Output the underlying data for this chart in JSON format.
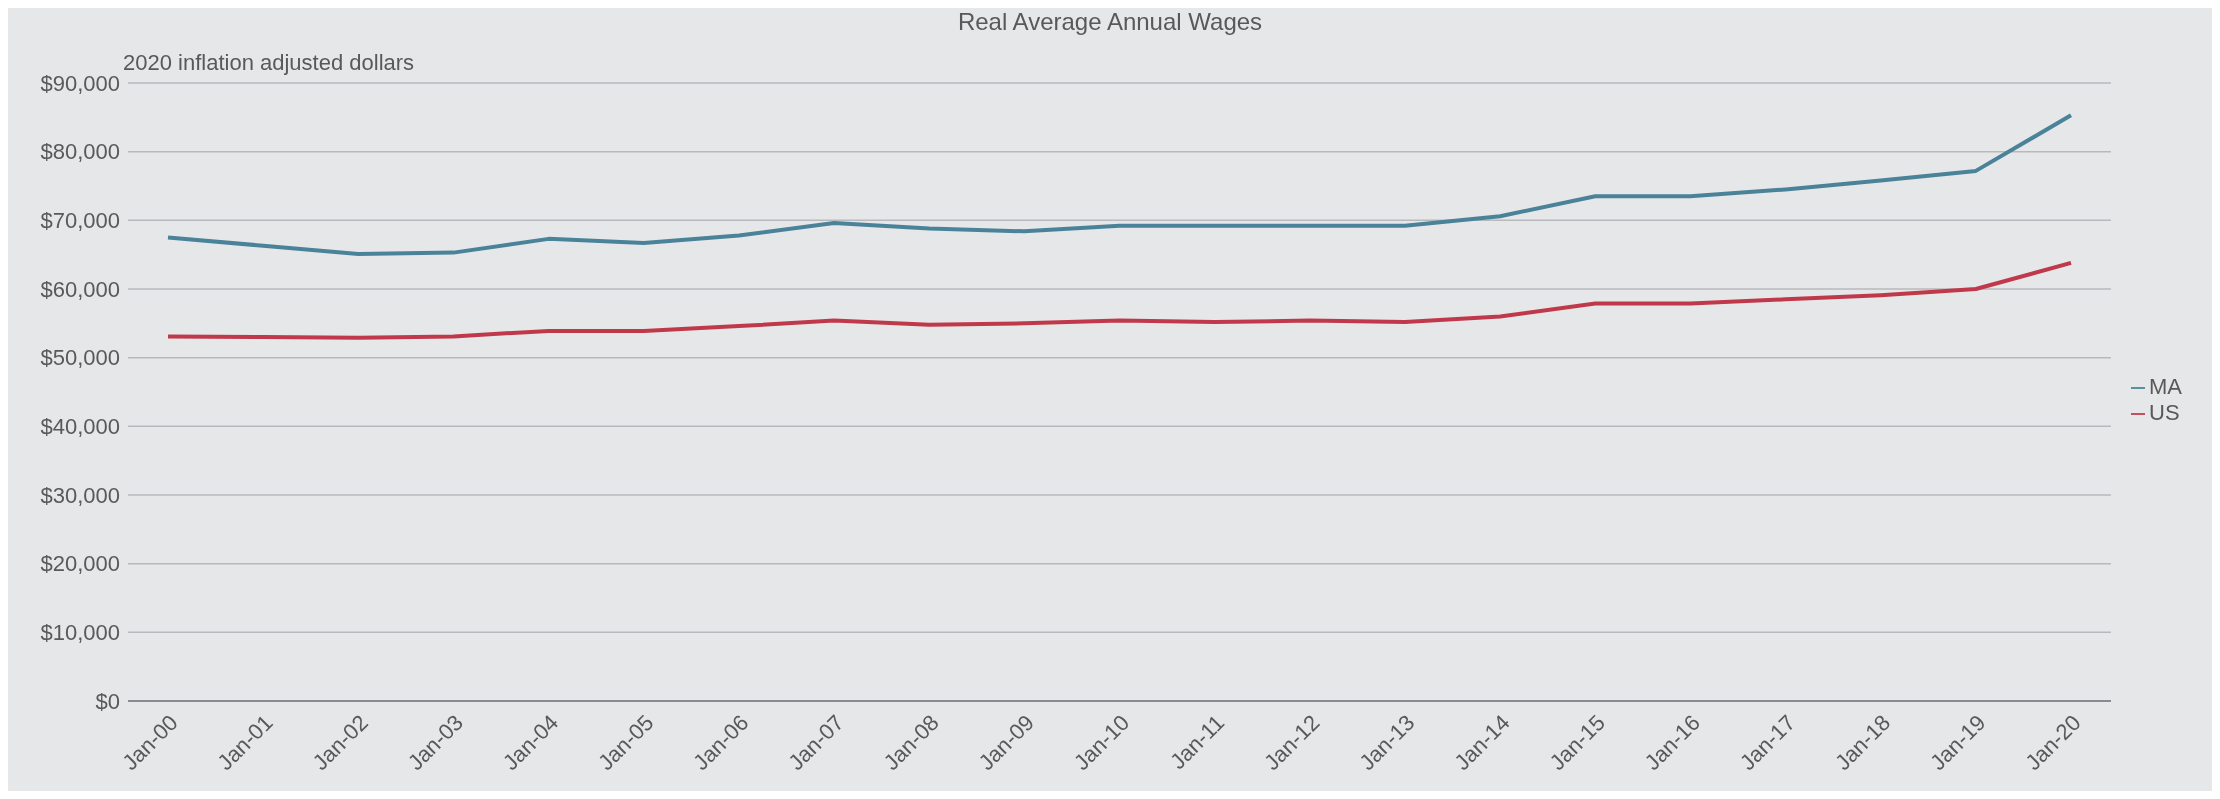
{
  "chart_data": {
    "type": "line",
    "title": "Real Average Annual Wages",
    "subtitle": "2020 inflation adjusted dollars",
    "categories": [
      "Jan-00",
      "Jan-01",
      "Jan-02",
      "Jan-03",
      "Jan-04",
      "Jan-05",
      "Jan-06",
      "Jan-07",
      "Jan-08",
      "Jan-09",
      "Jan-10",
      "Jan-11",
      "Jan-12",
      "Jan-13",
      "Jan-14",
      "Jan-15",
      "Jan-16",
      "Jan-17",
      "Jan-18",
      "Jan-19",
      "Jan-20"
    ],
    "series": [
      {
        "name": "MA",
        "color": "#4a8399",
        "values": [
          67500,
          66300,
          65100,
          65300,
          67300,
          66700,
          67800,
          69600,
          68800,
          68400,
          69200,
          69200,
          69200,
          69200,
          70600,
          73500,
          73500,
          74500,
          75800,
          77200,
          85300
        ]
      },
      {
        "name": "US",
        "color": "#c0394b",
        "values": [
          53100,
          53000,
          52900,
          53100,
          53900,
          53900,
          54600,
          55400,
          54800,
          55000,
          55400,
          55200,
          55400,
          55200,
          56000,
          57900,
          57900,
          58500,
          59100,
          60000,
          63800
        ]
      }
    ],
    "ylim": [
      0,
      90000
    ],
    "yticks": [
      {
        "value": 0,
        "label": "$0"
      },
      {
        "value": 10000,
        "label": "$10,000"
      },
      {
        "value": 20000,
        "label": "$20,000"
      },
      {
        "value": 30000,
        "label": "$30,000"
      },
      {
        "value": 40000,
        "label": "$40,000"
      },
      {
        "value": 50000,
        "label": "$50,000"
      },
      {
        "value": 60000,
        "label": "$60,000"
      },
      {
        "value": 70000,
        "label": "$70,000"
      },
      {
        "value": 80000,
        "label": "$80,000"
      },
      {
        "value": 90000,
        "label": "$90,000"
      }
    ],
    "grid": "y",
    "legend": "right",
    "marker": "none",
    "line_style": "solid"
  }
}
